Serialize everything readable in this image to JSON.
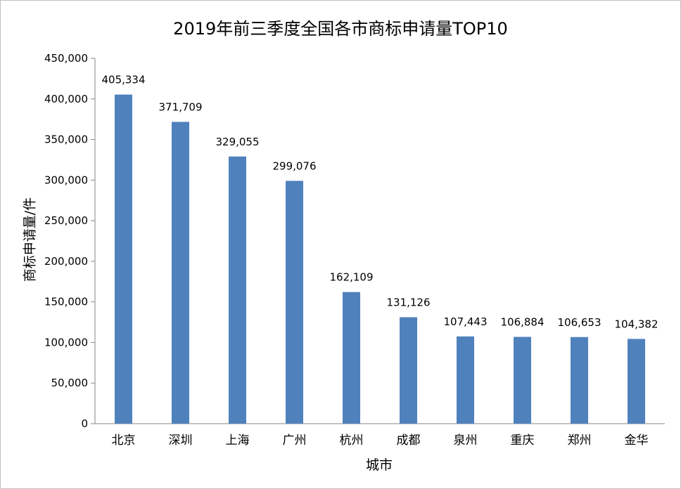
{
  "chart_data": {
    "type": "bar",
    "title": "2019年前三季度全国各市商标申请量TOP10",
    "xlabel": "城市",
    "ylabel": "商标申请量/件",
    "categories": [
      "北京",
      "深圳",
      "上海",
      "广州",
      "杭州",
      "成都",
      "泉州",
      "重庆",
      "郑州",
      "金华"
    ],
    "values": [
      405334,
      371709,
      329055,
      299076,
      162109,
      131126,
      107443,
      106884,
      106653,
      104382
    ],
    "value_labels": [
      "405,334",
      "371,709",
      "329,055",
      "299,076",
      "162,109",
      "131,126",
      "107,443",
      "106,884",
      "106,653",
      "104,382"
    ],
    "ylim": [
      0,
      450000
    ],
    "yticks": [
      0,
      50000,
      100000,
      150000,
      200000,
      250000,
      300000,
      350000,
      400000,
      450000
    ],
    "ytick_labels": [
      "0",
      "50,000",
      "100,000",
      "150,000",
      "200,000",
      "250,000",
      "300,000",
      "350,000",
      "400,000",
      "450,000"
    ],
    "grid": false,
    "legend": "none",
    "bar_color": "#4F81BD"
  }
}
